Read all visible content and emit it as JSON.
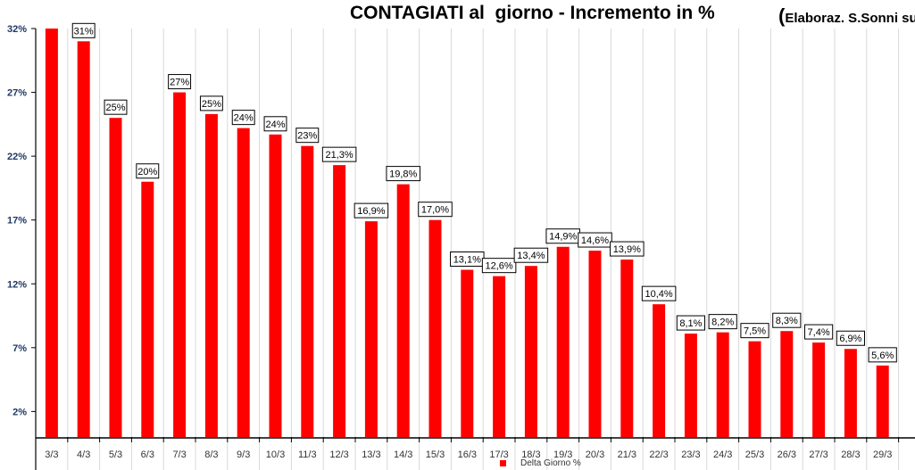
{
  "chart_data": {
    "type": "bar",
    "title": "CONTAGIATI al  giorno - Incremento in %",
    "subtitle_open": "(",
    "subtitle": "Elaboraz. S.Sonni su d",
    "categories": [
      "3/3",
      "4/3",
      "5/3",
      "6/3",
      "7/3",
      "8/3",
      "9/3",
      "10/3",
      "11/3",
      "12/3",
      "13/3",
      "14/3",
      "15/3",
      "16/3",
      "17/3",
      "18/3",
      "19/3",
      "20/3",
      "21/3",
      "22/3",
      "23/3",
      "24/3",
      "25/3",
      "26/3",
      "27/3",
      "28/3",
      "29/3"
    ],
    "series": [
      {
        "name": "Delta Giorno %",
        "color": "#ff0000",
        "values": [
          33,
          31,
          25,
          20,
          27,
          25.3,
          24.2,
          23.7,
          22.8,
          21.3,
          16.9,
          19.8,
          17.0,
          13.1,
          12.6,
          13.4,
          14.9,
          14.6,
          13.9,
          10.4,
          8.1,
          8.2,
          7.5,
          8.3,
          7.4,
          6.9,
          5.6
        ],
        "labels": [
          "",
          "31%",
          "25%",
          "20%",
          "27%",
          "25%",
          "24%",
          "24%",
          "23%",
          "21,3%",
          "16,9%",
          "19,8%",
          "17,0%",
          "13,1%",
          "12,6%",
          "13,4%",
          "14,9%",
          "14,6%",
          "13,9%",
          "10,4%",
          "8,1%",
          "8,2%",
          "7,5%",
          "8,3%",
          "7,4%",
          "6,9%",
          "5,6%"
        ]
      }
    ],
    "yticks": [
      2,
      7,
      12,
      17,
      22,
      27,
      32
    ],
    "ytick_labels": [
      "2%",
      "7%",
      "12%",
      "17%",
      "22%",
      "27%",
      "32%"
    ],
    "ylim": [
      0,
      32
    ],
    "xlabel": "",
    "ylabel": "",
    "grid": "vertical",
    "legend_position": "bottom"
  }
}
